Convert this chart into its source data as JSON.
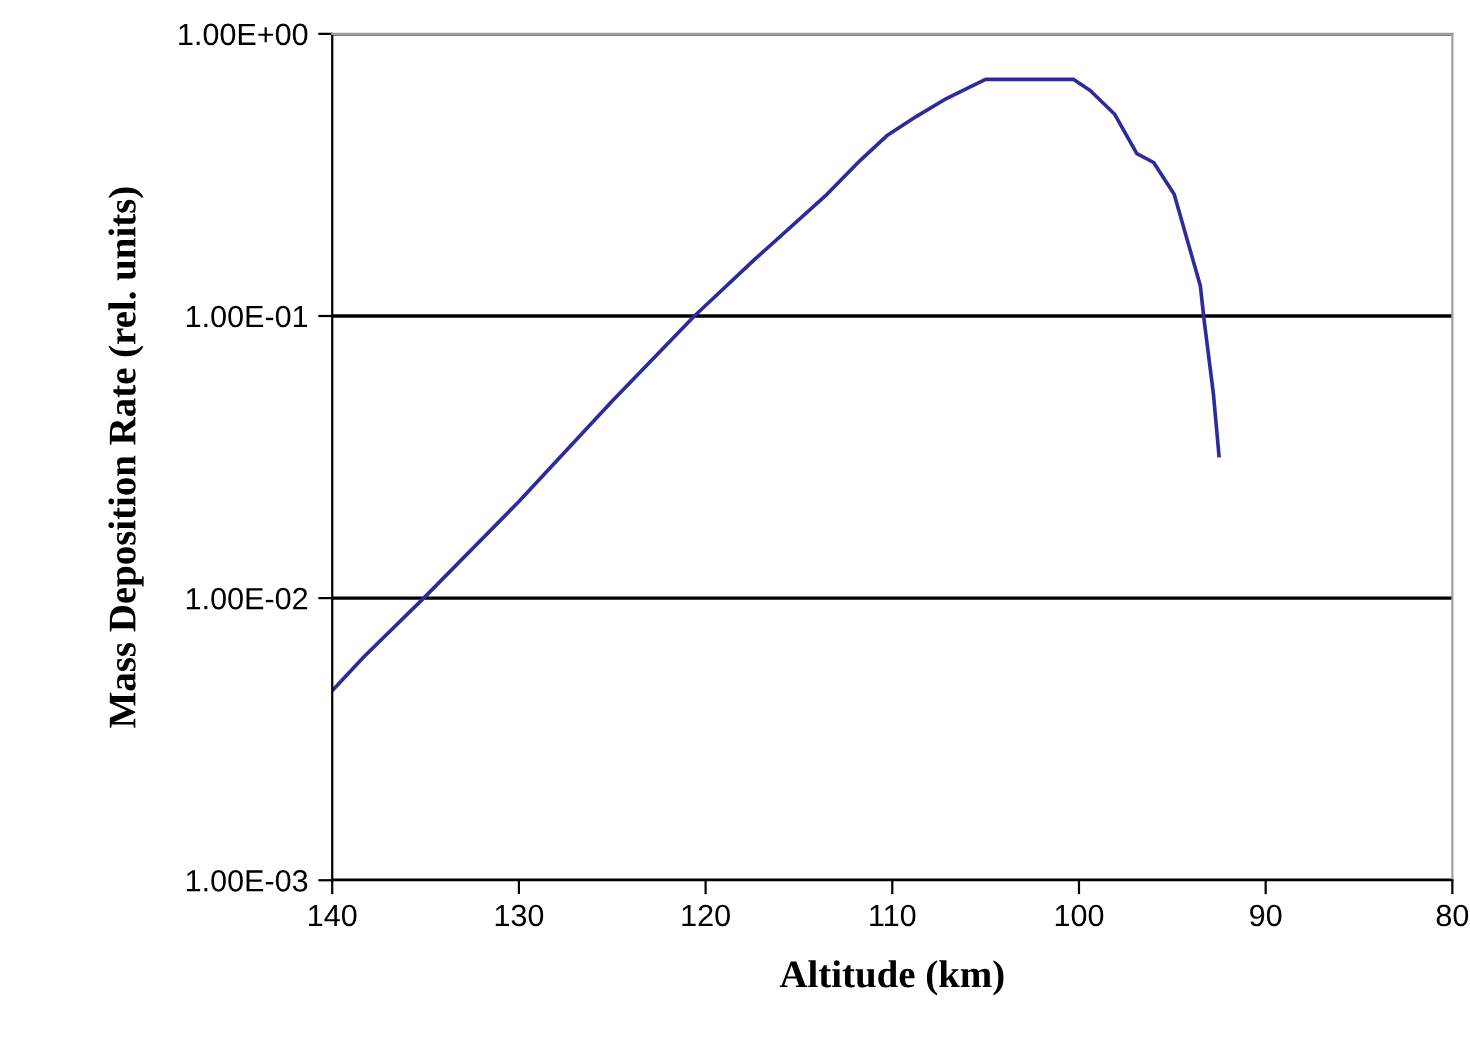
{
  "chart_data": {
    "type": "line",
    "xlabel": "Altitude (km)",
    "ylabel": "Mass Deposition Rate (rel. units)",
    "log": "y",
    "grid": "y",
    "marker": "none",
    "line_style": "solid",
    "xlim": [
      140,
      80
    ],
    "xticks": [
      140,
      130,
      120,
      110,
      100,
      90,
      80
    ],
    "ylim": [
      0.001,
      1
    ],
    "yticks": [
      {
        "value": 0.001,
        "label": "1.00E-03"
      },
      {
        "value": 0.01,
        "label": "1.00E-02"
      },
      {
        "value": 0.1,
        "label": "1.00E-01"
      },
      {
        "value": 1,
        "label": "1.00E+00"
      }
    ],
    "series": [
      {
        "color": "#2b2b9e",
        "x": [
          140,
          138.3,
          135.1,
          130,
          125,
          120.6,
          117.4,
          113.5,
          111.7,
          110.3,
          108.7,
          107.1,
          105.8,
          105.0,
          100.3,
          99.4,
          98.1,
          96.9,
          96.0,
          94.9,
          94.2,
          93.5,
          93.3,
          92.8,
          92.5
        ],
        "values": [
          0.0047,
          0.0062,
          0.01,
          0.022,
          0.05,
          0.1,
          0.158,
          0.27,
          0.357,
          0.435,
          0.51,
          0.59,
          0.65,
          0.69,
          0.69,
          0.63,
          0.52,
          0.376,
          0.35,
          0.27,
          0.186,
          0.128,
          0.097,
          0.053,
          0.032
        ]
      }
    ]
  }
}
